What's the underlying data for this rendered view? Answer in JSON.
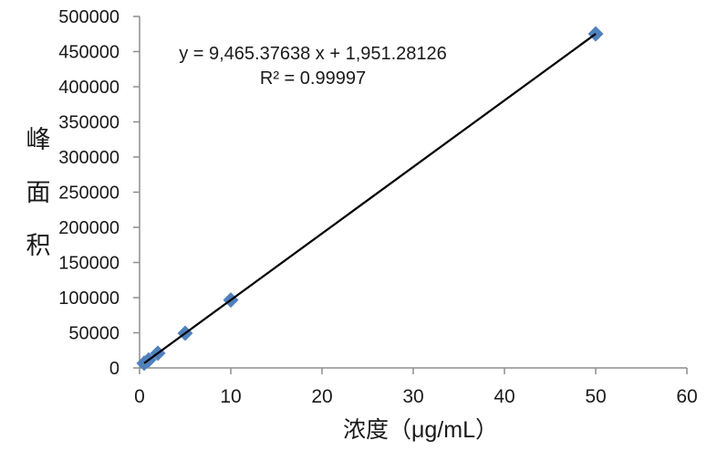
{
  "chart_data": {
    "type": "scatter",
    "title": "",
    "xlabel": "浓度（μg/mL）",
    "ylabel": "峰面积",
    "xlim": [
      0,
      60
    ],
    "ylim": [
      0,
      500000
    ],
    "x_ticks": [
      0,
      10,
      20,
      30,
      40,
      50,
      60
    ],
    "y_ticks": [
      0,
      50000,
      100000,
      150000,
      200000,
      250000,
      300000,
      350000,
      400000,
      450000,
      500000
    ],
    "grid": false,
    "legend": "none",
    "series": [
      {
        "name": "峰面积",
        "marker": "diamond",
        "color": "#4F81BD",
        "points": [
          [
            0.5,
            6684
          ],
          [
            1,
            11417
          ],
          [
            2,
            20881
          ],
          [
            5,
            49278
          ],
          [
            10,
            96605
          ],
          [
            50,
            475220
          ]
        ]
      }
    ],
    "trendline": {
      "slope": 9465.37638,
      "intercept": 1951.28126,
      "x_start": 0.5,
      "x_end": 50,
      "color": "#000000"
    },
    "annotations": {
      "equation": "y = 9,465.37638 x + 1,951.28126",
      "r_squared": "R² = 0.99997"
    },
    "colors": {
      "axis": "#8E8E8E",
      "tick_text": "#1a1a1a",
      "marker": "#4F81BD",
      "trendline": "#000000"
    }
  }
}
